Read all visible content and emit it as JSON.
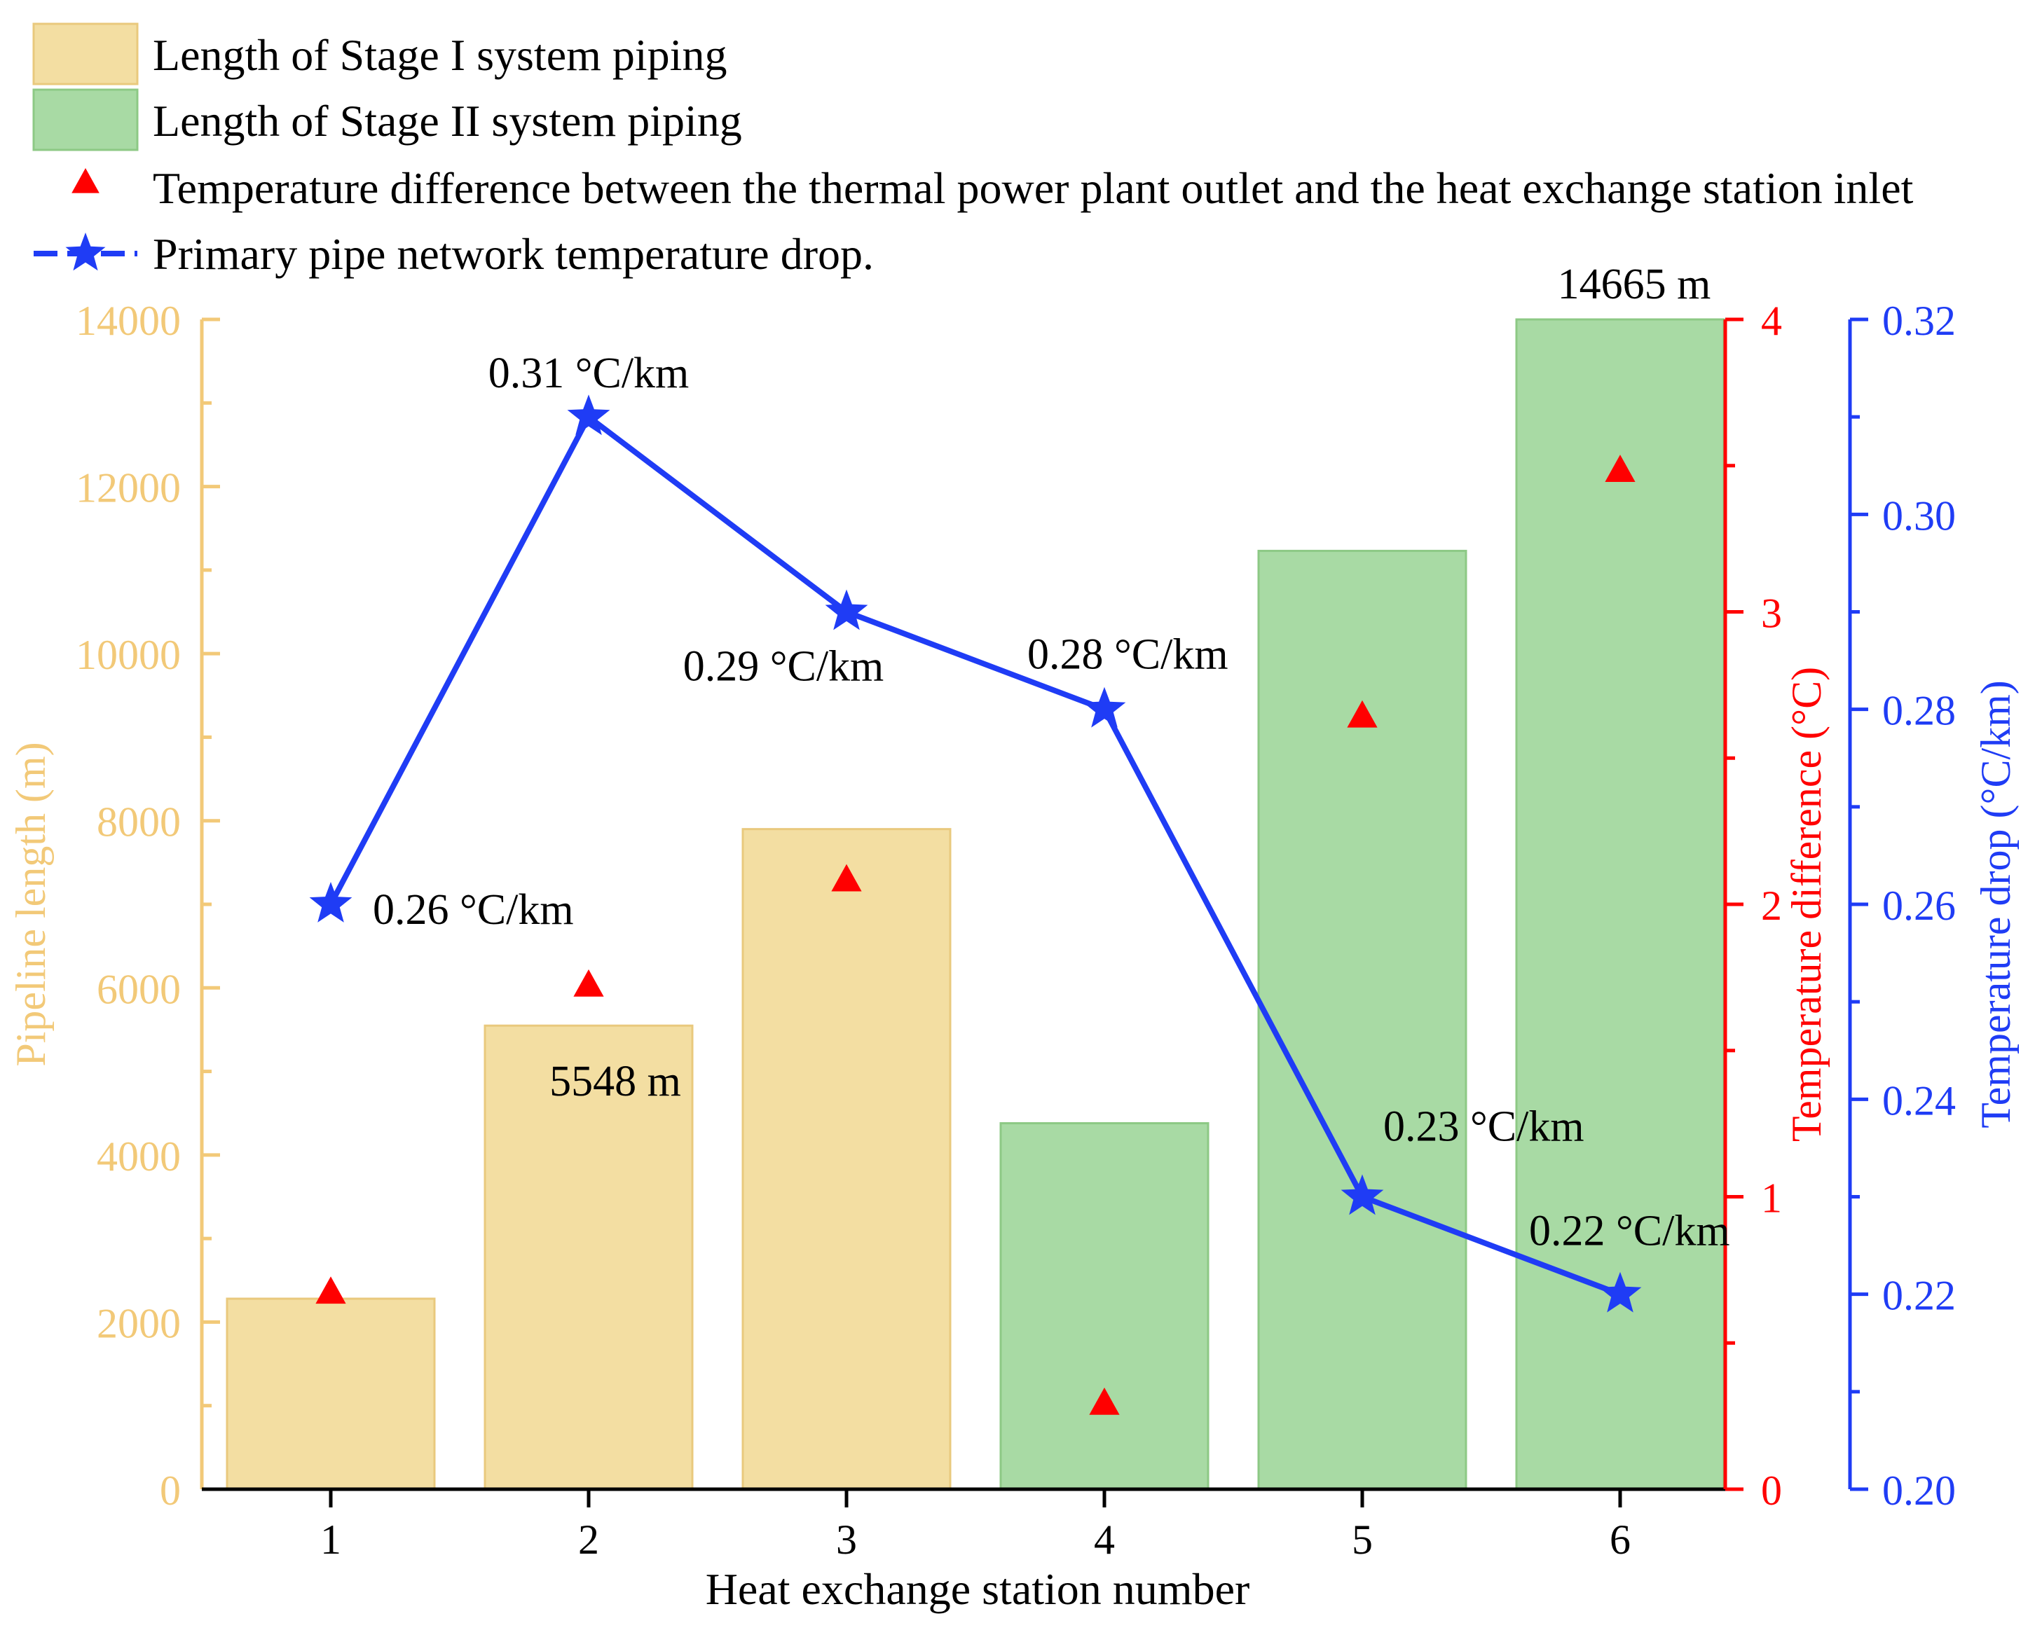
{
  "colors": {
    "stage1_fill": "#f3dea2",
    "stage1_stroke": "#e9c97d",
    "stage2_fill": "#a8daa4",
    "stage2_stroke": "#8dc985",
    "left_axis": "#f2c978",
    "temp_diff": "#ff0000",
    "temp_drop": "#1f3cf5",
    "text": "#000000"
  },
  "chart_data": {
    "type": "bar",
    "xlabel": "Heat exchange station number",
    "categories": [
      "1",
      "2",
      "3",
      "4",
      "5",
      "6"
    ],
    "legend": {
      "placement": "top-left",
      "entries": [
        "Length of Stage I system piping",
        "Length of Stage II system piping",
        "Temperature difference between the thermal power plant outlet and the heat exchange station inlet",
        "Primary pipe network temperature drop."
      ]
    },
    "pipeline_length": {
      "ylabel": "Pipeline length (m)",
      "ylim": [
        0,
        14000
      ],
      "ticks": [
        "0",
        "2000",
        "4000",
        "6000",
        "8000",
        "10000",
        "12000",
        "14000"
      ],
      "stages": [
        "I",
        "I",
        "I",
        "II",
        "II",
        "II"
      ],
      "values": [
        2280,
        5548,
        7900,
        4380,
        11230,
        14665
      ]
    },
    "temperature_difference": {
      "ylabel": "Temperature difference (°C)",
      "ylim": [
        0,
        4
      ],
      "ticks": [
        "0",
        "1",
        "2",
        "3",
        "4"
      ],
      "values": [
        0.67,
        1.72,
        2.08,
        0.29,
        2.64,
        3.48
      ]
    },
    "temperature_drop": {
      "ylabel": "Temperature drop (°C/km)",
      "ylim": [
        0.2,
        0.32
      ],
      "ticks": [
        "0.20",
        "0.22",
        "0.24",
        "0.26",
        "0.28",
        "0.30",
        "0.32"
      ],
      "values": [
        0.26,
        0.31,
        0.29,
        0.28,
        0.23,
        0.22
      ]
    },
    "annotations": {
      "bar_labels": [
        "5548 m",
        "14665 m"
      ],
      "drop_labels": [
        "0.26 °C/km",
        "0.31 °C/km",
        "0.29 °C/km",
        "0.28 °C/km",
        "0.23 °C/km",
        "0.22 °C/km"
      ]
    }
  }
}
